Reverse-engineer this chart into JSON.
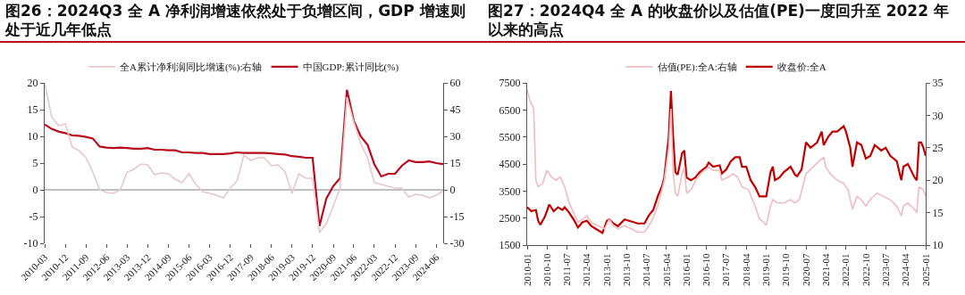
{
  "chart_data": [
    {
      "type": "line",
      "title": "图26：2024Q3 全 A 净利润增速依然处于负增区间，GDP 增速则处于近几年低点",
      "legend": "top",
      "grid": false,
      "line_style": "solid",
      "marker": "none",
      "x": [
        "2010-03",
        "2010-06",
        "2010-09",
        "2010-12",
        "2011-03",
        "2011-06",
        "2011-09",
        "2011-12",
        "2012-03",
        "2012-06",
        "2012-09",
        "2012-12",
        "2013-03",
        "2013-06",
        "2013-09",
        "2013-12",
        "2014-03",
        "2014-06",
        "2014-09",
        "2014-12",
        "2015-03",
        "2015-06",
        "2015-09",
        "2015-12",
        "2016-03",
        "2016-06",
        "2016-09",
        "2016-12",
        "2017-03",
        "2017-06",
        "2017-09",
        "2017-12",
        "2018-03",
        "2018-06",
        "2018-09",
        "2018-12",
        "2019-03",
        "2019-06",
        "2019-09",
        "2019-12",
        "2020-03",
        "2020-06",
        "2020-09",
        "2020-12",
        "2021-03",
        "2021-06",
        "2021-09",
        "2021-12",
        "2022-03",
        "2022-06",
        "2022-09",
        "2022-12",
        "2023-03",
        "2023-06",
        "2023-09",
        "2023-12",
        "2024-03",
        "2024-06",
        "2024-09"
      ],
      "xlim": [
        "2010-03",
        "2024-09"
      ],
      "xticks": [
        "2010-03",
        "2010-12",
        "2011-09",
        "2012-06",
        "2013-03",
        "2013-12",
        "2014-09",
        "2015-06",
        "2016-03",
        "2016-12",
        "2017-09",
        "2018-06",
        "2019-03",
        "2019-12",
        "2020-09",
        "2021-06",
        "2022-03",
        "2022-12",
        "2023-09",
        "2024-06"
      ],
      "ylim": [
        -10,
        20
      ],
      "yticks": [
        -10,
        -5,
        0,
        5,
        10,
        15,
        20
      ],
      "y2lim": [
        -30,
        60
      ],
      "y2ticks": [
        -30,
        -15,
        0,
        15,
        30,
        45,
        60
      ],
      "ref_lines": [
        {
          "axis": "y",
          "value": 0,
          "color": "#808080"
        }
      ],
      "series": [
        {
          "name": "中国GDP:累计同比(%)",
          "color": "#b80c1c",
          "values": [
            12.2,
            11.4,
            10.9,
            10.6,
            10.2,
            10.1,
            9.9,
            9.6,
            8.1,
            7.9,
            7.8,
            7.9,
            7.8,
            7.7,
            7.7,
            7.8,
            7.5,
            7.5,
            7.4,
            7.4,
            7.0,
            7.0,
            6.9,
            6.9,
            6.7,
            6.7,
            6.7,
            6.8,
            7.0,
            6.9,
            6.9,
            6.9,
            6.9,
            6.8,
            6.7,
            6.6,
            6.3,
            6.2,
            6.0,
            6.0,
            -6.8,
            -1.6,
            0.7,
            2.2,
            18.7,
            12.9,
            10.0,
            8.4,
            4.8,
            2.5,
            3.0,
            3.0,
            4.5,
            5.5,
            5.2,
            5.2,
            5.3,
            5.0,
            4.8
          ]
        },
        {
          "name": "全A累计净利润同比增速(%):右轴",
          "color": "#e6c8c8",
          "axis": "y2",
          "values": [
            60,
            41,
            36,
            37,
            24,
            22,
            18,
            10,
            0,
            -1.5,
            -2,
            0,
            10,
            11.5,
            14.5,
            14,
            8.5,
            9.5,
            9,
            6,
            4,
            9,
            3,
            -1,
            -2,
            -3,
            -4.5,
            1,
            5,
            19.5,
            16.5,
            18,
            18,
            13.5,
            14,
            10,
            -2,
            9,
            6.5,
            6.5,
            -24,
            -19,
            -9,
            1,
            52,
            38,
            26,
            18,
            4,
            3,
            2,
            1,
            1,
            -4,
            -2.5,
            -3,
            -4.5,
            -3,
            -0.5
          ]
        }
      ]
    },
    {
      "type": "line",
      "title": "图27：2024Q4 全 A 的收盘价以及估值(PE)一度回升至 2022 年以来的高点",
      "legend": "top",
      "grid": false,
      "line_style": "solid",
      "marker": "none",
      "xlim": [
        "2010-01",
        "2025-01"
      ],
      "xticks": [
        "2010-01",
        "2010-10",
        "2011-07",
        "2012-04",
        "2013-01",
        "2013-10",
        "2014-07",
        "2015-04",
        "2016-01",
        "2016-10",
        "2017-07",
        "2018-04",
        "2019-01",
        "2019-10",
        "2020-07",
        "2021-04",
        "2022-01",
        "2022-10",
        "2023-07",
        "2024-04",
        "2025-01"
      ],
      "ylim": [
        1500,
        7500
      ],
      "yticks": [
        1500,
        2500,
        3500,
        4500,
        5500,
        6500,
        7500
      ],
      "y2lim": [
        10,
        35
      ],
      "y2ticks": [
        10,
        15,
        20,
        25,
        30,
        35
      ],
      "series": [
        {
          "name": "收盘价:全A",
          "color": "#c00000",
          "x": [
            "2010-01",
            "2010-03",
            "2010-05",
            "2010-06",
            "2010-07",
            "2010-09",
            "2010-11",
            "2011-01",
            "2011-03",
            "2011-05",
            "2011-06",
            "2011-08",
            "2011-10",
            "2011-12",
            "2012-02",
            "2012-04",
            "2012-06",
            "2012-08",
            "2012-11",
            "2013-01",
            "2013-02",
            "2013-04",
            "2013-06",
            "2013-09",
            "2013-11",
            "2014-01",
            "2014-03",
            "2014-06",
            "2014-08",
            "2014-10",
            "2014-12",
            "2015-02",
            "2015-03",
            "2015-05",
            "2015-06",
            "2015-07",
            "2015-08",
            "2015-09",
            "2015-11",
            "2015-12",
            "2016-01",
            "2016-03",
            "2016-05",
            "2016-07",
            "2016-10",
            "2016-11",
            "2017-01",
            "2017-04",
            "2017-05",
            "2017-07",
            "2017-09",
            "2017-11",
            "2018-01",
            "2018-02",
            "2018-04",
            "2018-06",
            "2018-08",
            "2018-10",
            "2018-12",
            "2019-01",
            "2019-03",
            "2019-04",
            "2019-05",
            "2019-07",
            "2019-09",
            "2019-12",
            "2020-02",
            "2020-03",
            "2020-05",
            "2020-07",
            "2020-09",
            "2020-12",
            "2021-02",
            "2021-03",
            "2021-05",
            "2021-07",
            "2021-09",
            "2021-12",
            "2022-01",
            "2022-03",
            "2022-04",
            "2022-06",
            "2022-08",
            "2022-10",
            "2022-12",
            "2023-02",
            "2023-05",
            "2023-07",
            "2023-09",
            "2023-12",
            "2024-02",
            "2024-03",
            "2024-05",
            "2024-08",
            "2024-09",
            "2024-10",
            "2024-11",
            "2024-12",
            "2025-01"
          ],
          "values": [
            2900,
            2750,
            2800,
            2400,
            2250,
            2550,
            3000,
            2750,
            2900,
            2800,
            2900,
            2700,
            2450,
            2150,
            2350,
            2400,
            2200,
            2100,
            1950,
            2400,
            2450,
            2300,
            2200,
            2450,
            2400,
            2350,
            2300,
            2300,
            2600,
            2800,
            3300,
            3700,
            4000,
            5500,
            7200,
            5500,
            4200,
            4100,
            4900,
            5000,
            4000,
            3900,
            4000,
            4200,
            4400,
            4550,
            4400,
            4450,
            4150,
            4300,
            4600,
            4750,
            4750,
            4400,
            4400,
            3900,
            3650,
            3300,
            3300,
            3300,
            4200,
            4400,
            3900,
            4000,
            4200,
            4400,
            4100,
            4050,
            4300,
            5300,
            5100,
            5300,
            5700,
            5200,
            5500,
            5700,
            5700,
            5900,
            5700,
            5100,
            4400,
            5300,
            5200,
            4700,
            4800,
            5200,
            5000,
            5100,
            4800,
            4600,
            3900,
            4400,
            4500,
            4000,
            3900,
            5300,
            5300,
            5100,
            4800
          ]
        },
        {
          "name": "估值(PE):全A:右轴",
          "color": "#efbcc0",
          "axis": "y2",
          "x": [
            "2010-01",
            "2010-02",
            "2010-04",
            "2010-05",
            "2010-06",
            "2010-08",
            "2010-10",
            "2010-12",
            "2011-02",
            "2011-04",
            "2011-06",
            "2011-08",
            "2011-10",
            "2011-12",
            "2012-02",
            "2012-04",
            "2012-06",
            "2012-09",
            "2012-12",
            "2013-02",
            "2013-04",
            "2013-06",
            "2013-09",
            "2013-12",
            "2014-03",
            "2014-06",
            "2014-09",
            "2014-12",
            "2015-03",
            "2015-05",
            "2015-06",
            "2015-07",
            "2015-08",
            "2015-09",
            "2015-11",
            "2015-12",
            "2016-01",
            "2016-03",
            "2016-06",
            "2016-09",
            "2016-11",
            "2017-01",
            "2017-04",
            "2017-05",
            "2017-08",
            "2017-10",
            "2017-12",
            "2018-02",
            "2018-05",
            "2018-08",
            "2018-10",
            "2018-12",
            "2019-01",
            "2019-03",
            "2019-04",
            "2019-06",
            "2019-09",
            "2019-12",
            "2020-02",
            "2020-04",
            "2020-07",
            "2020-10",
            "2021-01",
            "2021-03",
            "2021-04",
            "2021-06",
            "2021-09",
            "2021-12",
            "2022-02",
            "2022-04",
            "2022-06",
            "2022-08",
            "2022-10",
            "2022-12",
            "2023-03",
            "2023-06",
            "2023-09",
            "2023-12",
            "2024-02",
            "2024-03",
            "2024-05",
            "2024-08",
            "2024-09",
            "2024-10",
            "2024-12",
            "2025-01"
          ],
          "values": [
            34,
            32.5,
            31,
            20,
            19,
            19.5,
            21.5,
            20.5,
            20,
            20.5,
            19,
            16.5,
            15,
            13.5,
            14,
            14.5,
            13.5,
            13,
            12.5,
            14,
            13,
            12.5,
            13,
            12.5,
            12,
            12,
            13.5,
            16,
            20,
            25,
            31,
            21,
            18,
            17.5,
            21,
            22,
            18,
            18.5,
            20.5,
            21.5,
            22,
            21.5,
            21.5,
            20,
            20.5,
            21,
            20.5,
            19,
            18.5,
            16,
            14,
            13.5,
            13,
            16,
            17,
            16.5,
            16.5,
            17,
            16.5,
            17,
            21,
            22,
            23,
            23.5,
            22,
            21,
            20,
            19.5,
            18.5,
            15.5,
            17.5,
            17,
            16,
            17,
            18,
            17.5,
            17,
            16,
            14.5,
            16,
            16.5,
            15.5,
            15,
            19,
            18.5,
            17.5
          ]
        }
      ]
    }
  ]
}
